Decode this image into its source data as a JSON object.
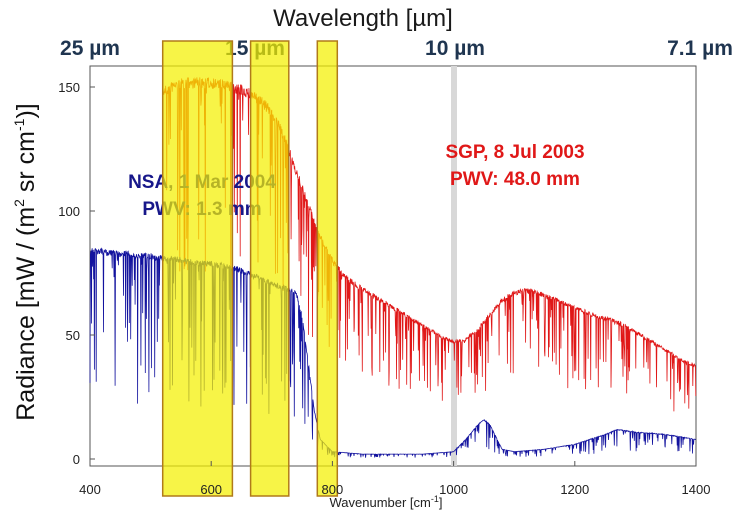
{
  "chart_data": {
    "type": "line",
    "top_axis_title": "Wavelength [µm]",
    "top_ticks": [
      {
        "label": "25 µm",
        "wavenumber": 400
      },
      {
        "label": "15 µm",
        "wavenumber": 667
      },
      {
        "label": "10 µm",
        "wavenumber": 1000
      },
      {
        "label": "7.1 µm",
        "wavenumber": 1400
      }
    ],
    "xlabel_base": "Wavenumber [cm",
    "xlabel_sup": "-1",
    "xlabel_end": "]",
    "ylabel_base": "Radiance [mW / (m",
    "ylabel_sup1": "2",
    "ylabel_mid": " sr cm",
    "ylabel_sup2": "-1",
    "ylabel_end": ")]",
    "xlim": [
      400,
      1400
    ],
    "ylim": [
      0,
      160
    ],
    "xticks": [
      400,
      600,
      800,
      1000,
      1200,
      1400
    ],
    "yticks": [
      0,
      50,
      100,
      150
    ],
    "grid": false,
    "series": [
      {
        "label_line1": "SGP, 8 Jul 2003",
        "label_line2": "PWV: 48.0 mm",
        "color": "#e01818",
        "envelope_x": [
          520,
          540,
          560,
          580,
          600,
          620,
          640,
          660,
          680,
          700,
          720,
          740,
          760,
          780,
          800,
          820,
          840,
          860,
          880,
          900,
          920,
          940,
          960,
          980,
          1000,
          1020,
          1040,
          1060,
          1080,
          1100,
          1120,
          1140,
          1160,
          1180,
          1200,
          1220,
          1240,
          1260,
          1280,
          1300,
          1320,
          1340,
          1360,
          1380,
          1400
        ],
        "envelope_y": [
          150,
          153,
          154,
          154,
          154,
          153,
          152,
          150,
          147,
          142,
          132,
          118,
          104,
          91,
          81,
          75,
          71,
          68,
          65,
          62,
          59,
          56,
          53,
          50,
          48,
          49,
          53,
          59,
          65,
          68,
          69,
          68,
          66,
          64,
          62,
          60,
          58,
          57,
          55,
          52,
          49,
          46,
          43,
          40,
          38
        ],
        "absorption_depth": 0.55
      },
      {
        "label_line1": "NSA, 1 Mar 2004",
        "label_line2": "PWV: 1.3 mm",
        "color": "#12129e",
        "envelope_x": [
          400,
          420,
          440,
          460,
          480,
          500,
          520,
          540,
          560,
          580,
          600,
          620,
          640,
          660,
          680,
          700,
          720,
          740,
          750,
          760,
          770,
          780,
          800,
          850,
          900,
          950,
          1000,
          1020,
          1040,
          1050,
          1060,
          1080,
          1100,
          1150,
          1200,
          1250,
          1270,
          1300,
          1350,
          1400
        ],
        "envelope_y": [
          85,
          85,
          84,
          84,
          83,
          83,
          82,
          82,
          81,
          80,
          80,
          79,
          78,
          76,
          74,
          72,
          70,
          68,
          58,
          40,
          20,
          8,
          3,
          2,
          2,
          2,
          3,
          8,
          14,
          16,
          14,
          4,
          3,
          4,
          6,
          10,
          12,
          11,
          10,
          8
        ],
        "absorption_depth": 0.75
      }
    ],
    "highlight_bands": [
      {
        "from": 520,
        "to": 635
      },
      {
        "from": 665,
        "to": 728
      },
      {
        "from": 775,
        "to": 808
      }
    ]
  }
}
